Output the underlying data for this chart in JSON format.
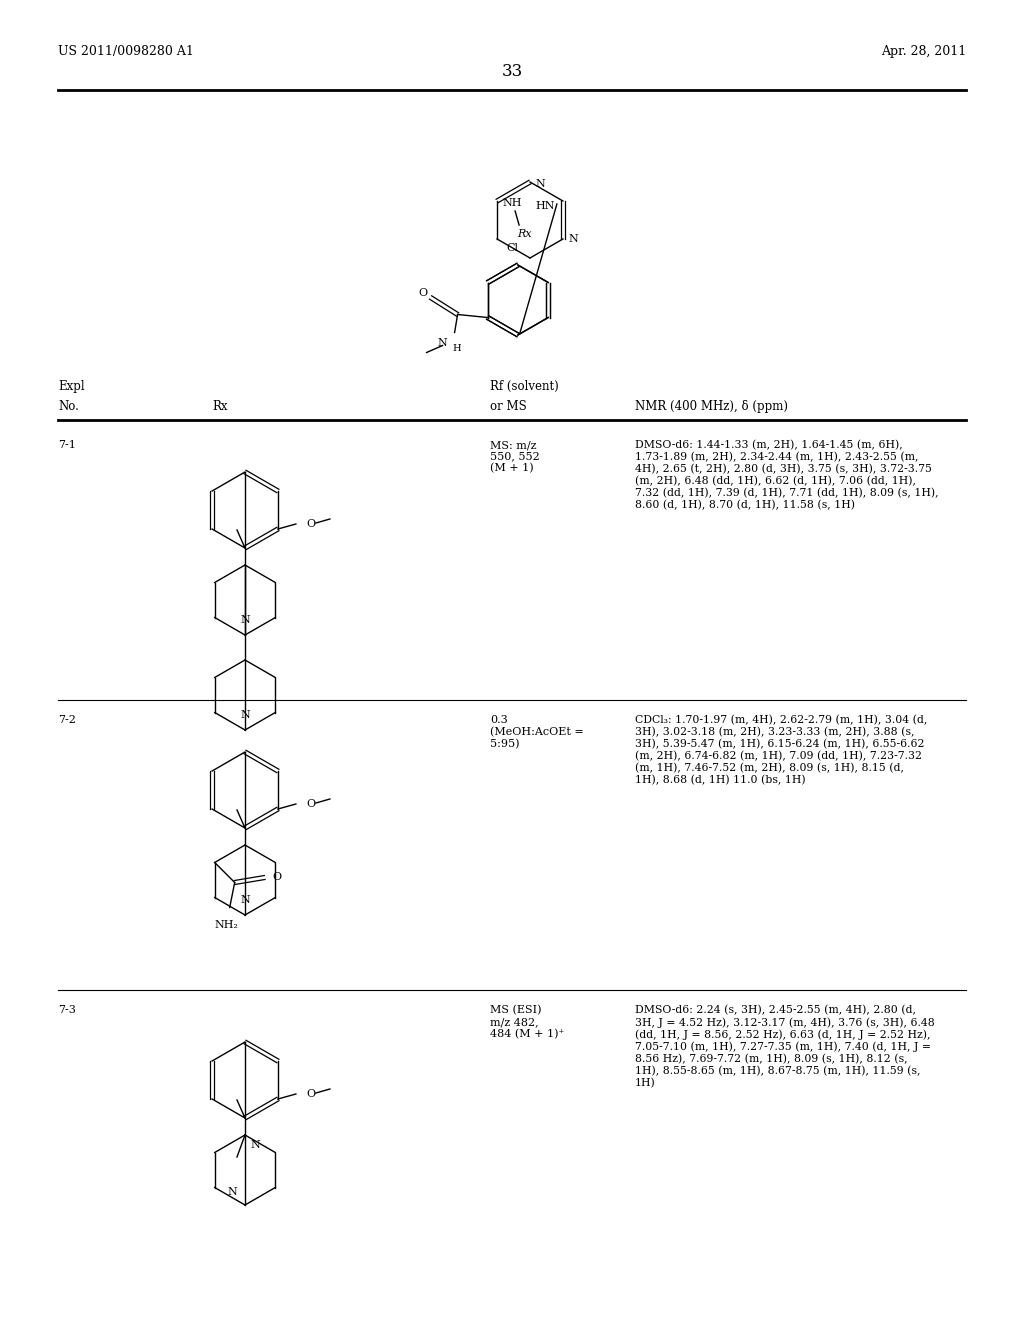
{
  "background_color": "#ffffff",
  "header_left": "US 2011/0098280 A1",
  "header_right": "Apr. 28, 2011",
  "page_number": "33",
  "rows": [
    {
      "no": "7-1",
      "ms": "MS: m/z\n550, 552\n(M + 1)",
      "nmr": "DMSO-d6: 1.44-1.33 (m, 2H), 1.64-1.45 (m, 6H),\n1.73-1.89 (m, 2H), 2.34-2.44 (m, 1H), 2.43-2.55 (m,\n4H), 2.65 (t, 2H), 2.80 (d, 3H), 3.75 (s, 3H), 3.72-3.75\n(m, 2H), 6.48 (dd, 1H), 6.62 (d, 1H), 7.06 (dd, 1H),\n7.32 (dd, 1H), 7.39 (d, 1H), 7.71 (dd, 1H), 8.09 (s, 1H),\n8.60 (d, 1H), 8.70 (d, 1H), 11.58 (s, 1H)"
    },
    {
      "no": "7-2",
      "ms": "0.3\n(MeOH:AcOEt =\n5:95)",
      "nmr": "CDCl₃: 1.70-1.97 (m, 4H), 2.62-2.79 (m, 1H), 3.04 (d,\n3H), 3.02-3.18 (m, 2H), 3.23-3.33 (m, 2H), 3.88 (s,\n3H), 5.39-5.47 (m, 1H), 6.15-6.24 (m, 1H), 6.55-6.62\n(m, 2H), 6.74-6.82 (m, 1H), 7.09 (dd, 1H), 7.23-7.32\n(m, 1H), 7.46-7.52 (m, 2H), 8.09 (s, 1H), 8.15 (d,\n1H), 8.68 (d, 1H) 11.0 (bs, 1H)"
    },
    {
      "no": "7-3",
      "ms": "MS (ESI)\nm/z 482,\n484 (M + 1)⁺",
      "nmr": "DMSO-d6: 2.24 (s, 3H), 2.45-2.55 (m, 4H), 2.80 (d,\n3H, J = 4.52 Hz), 3.12-3.17 (m, 4H), 3.76 (s, 3H), 6.48\n(dd, 1H, J = 8.56, 2.52 Hz), 6.63 (d, 1H, J = 2.52 Hz),\n7.05-7.10 (m, 1H), 7.27-7.35 (m, 1H), 7.40 (d, 1H, J =\n8.56 Hz), 7.69-7.72 (m, 1H), 8.09 (s, 1H), 8.12 (s,\n1H), 8.55-8.65 (m, 1H), 8.67-8.75 (m, 1H), 11.59 (s,\n1H)"
    }
  ]
}
